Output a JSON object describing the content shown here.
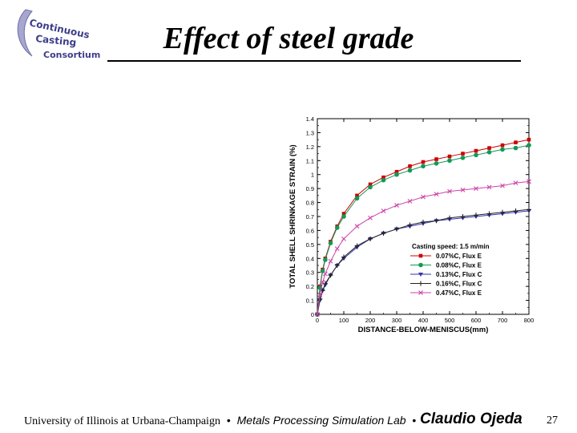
{
  "logo": {
    "lines": [
      "Continuous",
      "Casting",
      "Consortium"
    ]
  },
  "slide": {
    "title": "Effect of steel grade",
    "page_number": "27"
  },
  "footer": {
    "university": "University of Illinois at Urbana-Champaign",
    "separator": "•",
    "lab": "Metals Processing Simulation Lab",
    "author": "Claudio Ojeda"
  },
  "chart_data": {
    "type": "line",
    "title": "",
    "xlabel": "DISTANCE-BELOW-MENISCUS(mm)",
    "ylabel": "TOTAL SHELL SHRINKAGE STRAIN (%)",
    "xlim": [
      0,
      800
    ],
    "ylim": [
      0,
      1.4
    ],
    "xticks": [
      "0",
      "100",
      "200",
      "300",
      "400",
      "500",
      "600",
      "700",
      "800"
    ],
    "yticks": [
      "0",
      "0.1",
      "0.2",
      "0.3",
      "0.4",
      "0.5",
      "0.6",
      "0.7",
      "0.8",
      "0.9",
      "1",
      "1.1",
      "1.2",
      "1.3",
      "1.4"
    ],
    "legend_title": "Casting speed: 1.5 m/min",
    "legend_position": "bottom-right",
    "grid": false,
    "x": [
      0,
      10,
      20,
      30,
      50,
      75,
      100,
      150,
      200,
      250,
      300,
      350,
      400,
      450,
      500,
      550,
      600,
      650,
      700,
      750,
      800
    ],
    "series": [
      {
        "name": "0.07%C, Flux E",
        "color": "#cc0000",
        "marker": "square",
        "values": [
          0,
          0.2,
          0.32,
          0.4,
          0.52,
          0.63,
          0.72,
          0.85,
          0.93,
          0.98,
          1.02,
          1.06,
          1.09,
          1.11,
          1.13,
          1.15,
          1.17,
          1.19,
          1.21,
          1.23,
          1.25
        ]
      },
      {
        "name": "0.08%C, Flux E",
        "color": "#119955",
        "marker": "circle",
        "values": [
          0,
          0.19,
          0.31,
          0.39,
          0.51,
          0.62,
          0.7,
          0.83,
          0.91,
          0.96,
          1.0,
          1.03,
          1.06,
          1.08,
          1.1,
          1.12,
          1.14,
          1.16,
          1.18,
          1.19,
          1.21
        ]
      },
      {
        "name": "0.13%C, Flux C",
        "color": "#3333aa",
        "marker": "triangle-down",
        "values": [
          0,
          0.1,
          0.17,
          0.21,
          0.28,
          0.35,
          0.4,
          0.48,
          0.54,
          0.58,
          0.61,
          0.63,
          0.65,
          0.67,
          0.68,
          0.69,
          0.7,
          0.71,
          0.72,
          0.73,
          0.74
        ]
      },
      {
        "name": "0.16%C, Flux C",
        "color": "#222222",
        "marker": "plus",
        "values": [
          0,
          0.11,
          0.17,
          0.22,
          0.28,
          0.35,
          0.41,
          0.49,
          0.54,
          0.58,
          0.61,
          0.64,
          0.66,
          0.67,
          0.69,
          0.7,
          0.71,
          0.72,
          0.73,
          0.74,
          0.75
        ]
      },
      {
        "name": "0.47%C, Flux E",
        "color": "#cc44aa",
        "marker": "x",
        "values": [
          0,
          0.14,
          0.23,
          0.29,
          0.38,
          0.47,
          0.54,
          0.63,
          0.69,
          0.74,
          0.78,
          0.81,
          0.84,
          0.86,
          0.88,
          0.89,
          0.9,
          0.91,
          0.92,
          0.94,
          0.95
        ]
      }
    ]
  }
}
